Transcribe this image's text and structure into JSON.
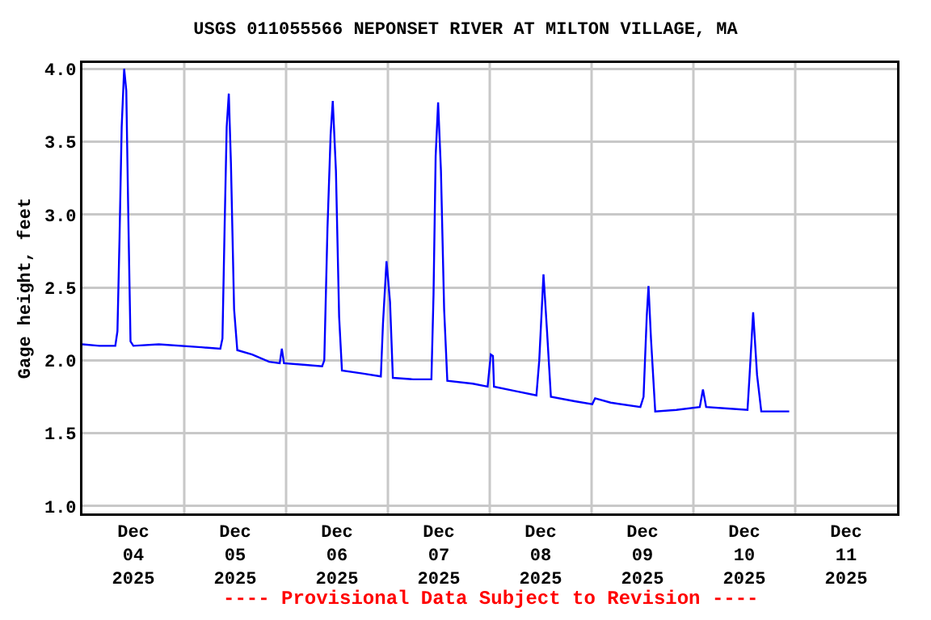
{
  "chart_data": {
    "type": "line",
    "title": "USGS 011055566 NEPONSET RIVER AT MILTON VILLAGE, MA",
    "ylabel": "Gage height, feet",
    "annotations": [
      "---- Provisional Data Subject to Revision ----"
    ],
    "x": [
      "2025-12-04T00:00",
      "2025-12-04T04:00",
      "2025-12-04T07:45",
      "2025-12-04T08:15",
      "2025-12-04T08:45",
      "2025-12-04T09:15",
      "2025-12-04T09:50",
      "2025-12-04T10:20",
      "2025-12-04T10:50",
      "2025-12-04T11:20",
      "2025-12-04T12:00",
      "2025-12-04T18:00",
      "2025-12-05T04:00",
      "2025-12-05T08:30",
      "2025-12-05T09:00",
      "2025-12-05T09:30",
      "2025-12-05T10:00",
      "2025-12-05T10:30",
      "2025-12-05T11:00",
      "2025-12-05T11:45",
      "2025-12-05T12:30",
      "2025-12-05T16:00",
      "2025-12-05T20:00",
      "2025-12-05T22:30",
      "2025-12-05T23:00",
      "2025-12-05T23:30",
      "2025-12-06T04:00",
      "2025-12-06T08:30",
      "2025-12-06T09:00",
      "2025-12-06T09:45",
      "2025-12-06T10:30",
      "2025-12-06T11:00",
      "2025-12-06T11:45",
      "2025-12-06T12:30",
      "2025-12-06T13:10",
      "2025-12-06T18:00",
      "2025-12-06T22:20",
      "2025-12-06T22:50",
      "2025-12-06T23:40",
      "2025-12-07T00:30",
      "2025-12-07T01:10",
      "2025-12-07T06:00",
      "2025-12-07T10:15",
      "2025-12-07T10:45",
      "2025-12-07T11:15",
      "2025-12-07T11:50",
      "2025-12-07T12:30",
      "2025-12-07T13:15",
      "2025-12-07T14:00",
      "2025-12-07T20:00",
      "2025-12-07T23:30",
      "2025-12-08T00:15",
      "2025-12-08T00:45",
      "2025-12-08T01:00",
      "2025-12-08T06:00",
      "2025-12-08T11:00",
      "2025-12-08T11:40",
      "2025-12-08T12:40",
      "2025-12-08T13:30",
      "2025-12-08T14:25",
      "2025-12-08T20:00",
      "2025-12-09T00:10",
      "2025-12-09T00:50",
      "2025-12-09T04:30",
      "2025-12-09T11:30",
      "2025-12-09T12:15",
      "2025-12-09T13:00",
      "2025-12-09T13:25",
      "2025-12-09T14:00",
      "2025-12-09T15:00",
      "2025-12-09T20:00",
      "2025-12-10T01:30",
      "2025-12-10T02:15",
      "2025-12-10T03:00",
      "2025-12-10T08:00",
      "2025-12-10T12:45",
      "2025-12-10T13:15",
      "2025-12-10T14:05",
      "2025-12-10T15:00",
      "2025-12-10T16:00",
      "2025-12-10T22:35"
    ],
    "series": [
      {
        "color": "#0000ff",
        "values": [
          2.11,
          2.1,
          2.1,
          2.2,
          2.85,
          3.6,
          4.0,
          3.85,
          2.95,
          2.13,
          2.1,
          2.11,
          2.09,
          2.08,
          2.15,
          2.9,
          3.6,
          3.83,
          3.35,
          2.35,
          2.07,
          2.04,
          1.99,
          1.98,
          2.08,
          1.98,
          1.97,
          1.96,
          2.0,
          2.9,
          3.55,
          3.78,
          3.3,
          2.3,
          1.93,
          1.91,
          1.89,
          2.25,
          2.68,
          2.4,
          1.88,
          1.87,
          1.87,
          2.45,
          3.4,
          3.77,
          3.3,
          2.35,
          1.86,
          1.84,
          1.82,
          2.04,
          2.03,
          1.82,
          1.79,
          1.76,
          2.0,
          2.59,
          2.2,
          1.75,
          1.72,
          1.7,
          1.74,
          1.71,
          1.68,
          1.75,
          2.3,
          2.51,
          2.15,
          1.65,
          1.66,
          1.68,
          1.8,
          1.68,
          1.67,
          1.66,
          1.9,
          2.33,
          1.9,
          1.65,
          1.65
        ]
      }
    ],
    "xlim": [
      "2025-12-04T00:00",
      "2025-12-12T00:00"
    ],
    "xticks": [
      {
        "value": "2025-12-04T12:00",
        "label": "Dec\n04\n2025"
      },
      {
        "value": "2025-12-05T00:00",
        "label": null
      },
      {
        "value": "2025-12-05T12:00",
        "label": "Dec\n05\n2025"
      },
      {
        "value": "2025-12-06T00:00",
        "label": null
      },
      {
        "value": "2025-12-06T12:00",
        "label": "Dec\n06\n2025"
      },
      {
        "value": "2025-12-07T00:00",
        "label": null
      },
      {
        "value": "2025-12-07T12:00",
        "label": "Dec\n07\n2025"
      },
      {
        "value": "2025-12-08T00:00",
        "label": null
      },
      {
        "value": "2025-12-08T12:00",
        "label": "Dec\n08\n2025"
      },
      {
        "value": "2025-12-09T00:00",
        "label": null
      },
      {
        "value": "2025-12-09T12:00",
        "label": "Dec\n09\n2025"
      },
      {
        "value": "2025-12-10T00:00",
        "label": null
      },
      {
        "value": "2025-12-10T12:00",
        "label": "Dec\n10\n2025"
      },
      {
        "value": "2025-12-11T00:00",
        "label": null
      },
      {
        "value": "2025-12-11T12:00",
        "label": "Dec\n11\n2025"
      }
    ],
    "ylim": [
      0.95,
      4.04
    ],
    "yticks": [
      {
        "value": 1,
        "label": "1.0"
      },
      {
        "value": 1.5,
        "label": "1.5"
      },
      {
        "value": 2,
        "label": "2.0"
      },
      {
        "value": 2.5,
        "label": "2.5"
      },
      {
        "value": 3,
        "label": "3.0"
      },
      {
        "value": 3.5,
        "label": "3.5"
      },
      {
        "value": 4,
        "label": "4.0"
      }
    ],
    "grid": true,
    "marker": "none",
    "line_style": "solid"
  }
}
